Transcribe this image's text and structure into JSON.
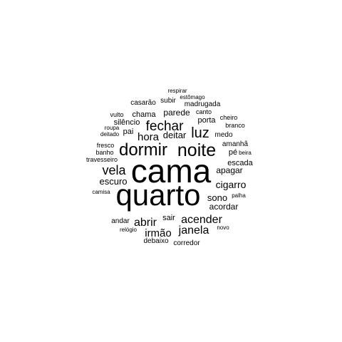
{
  "chart_data": {
    "type": "wordcloud",
    "words": [
      {
        "text": "cama",
        "weight": 100
      },
      {
        "text": "quarto",
        "weight": 97
      },
      {
        "text": "noite",
        "weight": 58
      },
      {
        "text": "dormir",
        "weight": 53
      },
      {
        "text": "luz",
        "weight": 45
      },
      {
        "text": "fechar",
        "weight": 43
      },
      {
        "text": "vela",
        "weight": 40
      },
      {
        "text": "abrir",
        "weight": 36
      },
      {
        "text": "acender",
        "weight": 35
      },
      {
        "text": "janela",
        "weight": 35
      },
      {
        "text": "irmão",
        "weight": 33
      },
      {
        "text": "hora",
        "weight": 33
      },
      {
        "text": "cigarro",
        "weight": 30
      },
      {
        "text": "sono",
        "weight": 29
      },
      {
        "text": "escuro",
        "weight": 28
      },
      {
        "text": "deitar",
        "weight": 28
      },
      {
        "text": "apagar",
        "weight": 27
      },
      {
        "text": "parede",
        "weight": 27
      },
      {
        "text": "acordar",
        "weight": 26
      },
      {
        "text": "chama",
        "weight": 25
      },
      {
        "text": "escada",
        "weight": 25
      },
      {
        "text": "porta",
        "weight": 24
      },
      {
        "text": "sair",
        "weight": 24
      },
      {
        "text": "pé",
        "weight": 23
      },
      {
        "text": "silêncio",
        "weight": 23
      },
      {
        "text": "pai",
        "weight": 23
      },
      {
        "text": "medo",
        "weight": 22
      },
      {
        "text": "andar",
        "weight": 21
      },
      {
        "text": "corredor",
        "weight": 21
      },
      {
        "text": "debaixo",
        "weight": 20
      },
      {
        "text": "amanhã",
        "weight": 20
      },
      {
        "text": "madrugada",
        "weight": 20
      },
      {
        "text": "casarão",
        "weight": 20
      },
      {
        "text": "subir",
        "weight": 20
      },
      {
        "text": "travesseiro",
        "weight": 19
      },
      {
        "text": "canto",
        "weight": 19
      },
      {
        "text": "vulto",
        "weight": 19
      },
      {
        "text": "fresco",
        "weight": 18
      },
      {
        "text": "banho",
        "weight": 18
      },
      {
        "text": "cheiro",
        "weight": 18
      },
      {
        "text": "branco",
        "weight": 18
      },
      {
        "text": "deitado",
        "weight": 18
      },
      {
        "text": "relógio",
        "weight": 18
      },
      {
        "text": "camisa",
        "weight": 18
      },
      {
        "text": "respirar",
        "weight": 18
      },
      {
        "text": "roupa",
        "weight": 17
      },
      {
        "text": "estômago",
        "weight": 17
      },
      {
        "text": "palha",
        "weight": 17
      },
      {
        "text": "beira",
        "weight": 17
      },
      {
        "text": "novo",
        "weight": 17
      }
    ]
  }
}
